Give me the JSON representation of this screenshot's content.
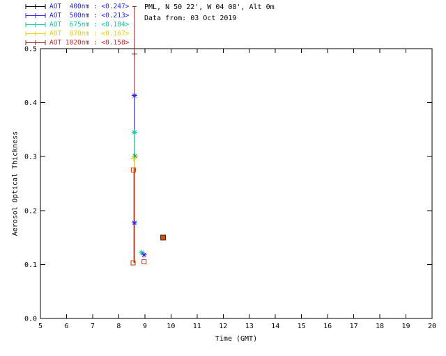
{
  "header": {
    "site": "PML, N 50 22', W 04 08', Alt 0m",
    "data_from": "Data from: 03 Oct 2019"
  },
  "legend": {
    "entries": [
      {
        "label": "AOT  400nm",
        "value": "<0.247>",
        "text_color": "#2222ee",
        "line_color": "#000000"
      },
      {
        "label": "AOT  500nm",
        "value": "<0.213>",
        "text_color": "#2222ee",
        "line_color": "#2222ee"
      },
      {
        "label": "AOT  675nm",
        "value": "<0.184>",
        "text_color": "#00c896",
        "line_color": "#00c896"
      },
      {
        "label": "AOT  870nm",
        "value": "<0.167>",
        "text_color": "#e0d000",
        "line_color": "#e0d000"
      },
      {
        "label": "AOT 1020nm",
        "value": "<0.158>",
        "text_color": "#cc2222",
        "line_color": "#8b1a1a"
      }
    ]
  },
  "chart_data": {
    "type": "scatter",
    "title": "",
    "xlabel": "Time (GMT)",
    "ylabel": "Aerosol Optical Thickness",
    "xlim": [
      5,
      20
    ],
    "ylim": [
      0,
      0.5
    ],
    "xticks": [
      5,
      6,
      7,
      8,
      9,
      10,
      11,
      12,
      13,
      14,
      15,
      16,
      17,
      18,
      19,
      20
    ],
    "yticks": [
      0,
      0.1,
      0.2,
      0.3,
      0.4,
      0.5
    ],
    "ytick_labels": [
      "0.0",
      "0.1",
      "0.2",
      "0.3",
      "0.4",
      "0.5"
    ],
    "grid": false,
    "legend_position": "top-left",
    "axis_color": "#000000",
    "series": [
      {
        "name": "AOT 400nm",
        "mean_aot": 0.247,
        "color": "#2222ee"
      },
      {
        "name": "AOT 500nm",
        "mean_aot": 0.213,
        "color": "#2222ee"
      },
      {
        "name": "AOT 675nm",
        "mean_aot": 0.184,
        "color": "#00c896"
      },
      {
        "name": "AOT 870nm",
        "mean_aot": 0.167,
        "color": "#e0d000"
      },
      {
        "name": "AOT 1020nm",
        "mean_aot": 0.158,
        "color": "#cc2222"
      }
    ],
    "error_bars": [
      {
        "x": 8.6,
        "y1": 0.103,
        "y2": 0.578,
        "color": "#8b1a1a",
        "cap_top": true
      },
      {
        "x": 8.6,
        "y1": 0.345,
        "y2": 0.415,
        "color": "#2222ee"
      },
      {
        "x": 8.6,
        "y1": 0.3,
        "y2": 0.345,
        "color": "#00c896"
      },
      {
        "x": 8.6,
        "y1": 0.278,
        "y2": 0.3,
        "color": "#e0d000"
      },
      {
        "x": 8.58,
        "y1": 0.103,
        "y2": 0.278,
        "color": "#cc3300"
      }
    ],
    "markers": [
      {
        "x": 8.6,
        "y": 0.49,
        "shape": "plus",
        "color": "#8b1a1a"
      },
      {
        "x": 8.6,
        "y": 0.413,
        "shape": "asterisk",
        "color": "#2222ee"
      },
      {
        "x": 8.6,
        "y": 0.345,
        "shape": "asterisk",
        "color": "#00c896"
      },
      {
        "x": 8.62,
        "y": 0.301,
        "shape": "asterisk",
        "color": "#2ab22a"
      },
      {
        "x": 8.57,
        "y": 0.297,
        "shape": "plus",
        "color": "#e0d000"
      },
      {
        "x": 8.56,
        "y": 0.275,
        "shape": "square",
        "color": "#cc3300"
      },
      {
        "x": 8.6,
        "y": 0.177,
        "shape": "asterisk",
        "color": "#2222ee"
      },
      {
        "x": 8.55,
        "y": 0.103,
        "shape": "square",
        "color": "#cc3300"
      },
      {
        "x": 8.88,
        "y": 0.122,
        "shape": "asterisk",
        "color": "#00c896"
      },
      {
        "x": 8.97,
        "y": 0.118,
        "shape": "asterisk",
        "color": "#2222ee"
      },
      {
        "x": 8.97,
        "y": 0.105,
        "shape": "square",
        "color": "#cc3300"
      },
      {
        "x": 9.7,
        "y": 0.15,
        "shape": "filled-square",
        "color": "#cc5511",
        "stroke": "#4d1a00"
      }
    ]
  }
}
